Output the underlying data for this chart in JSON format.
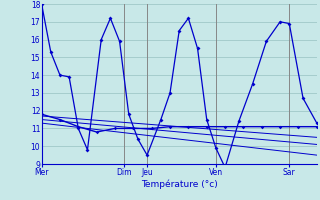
{
  "title": "Température (°c)",
  "background_color": "#c8e8e8",
  "plot_bg_color": "#c8e8e8",
  "grid_color": "#a0c8c8",
  "line_color": "#0000cc",
  "ylim": [
    9,
    18
  ],
  "yticks": [
    9,
    10,
    11,
    12,
    13,
    14,
    15,
    16,
    17,
    18
  ],
  "xlim": [
    0,
    60
  ],
  "x_day_labels": [
    "Mer",
    "Dim",
    "Jeu",
    "Ven",
    "Sar"
  ],
  "x_day_positions": [
    0,
    18,
    23,
    38,
    54
  ],
  "series_max": [
    [
      0,
      18.0
    ],
    [
      2,
      15.3
    ],
    [
      4,
      14.0
    ],
    [
      6,
      13.9
    ],
    [
      8,
      11.0
    ],
    [
      10,
      9.8
    ],
    [
      13,
      16.0
    ],
    [
      15,
      17.2
    ],
    [
      17,
      15.9
    ],
    [
      19,
      11.8
    ],
    [
      21,
      10.4
    ],
    [
      23,
      9.5
    ],
    [
      26,
      11.5
    ],
    [
      28,
      13.0
    ],
    [
      30,
      16.5
    ],
    [
      32,
      17.2
    ],
    [
      34,
      15.5
    ],
    [
      36,
      11.5
    ],
    [
      38,
      9.9
    ],
    [
      40,
      8.8
    ],
    [
      43,
      11.4
    ],
    [
      46,
      13.5
    ],
    [
      49,
      15.9
    ],
    [
      52,
      17.0
    ],
    [
      54,
      16.9
    ],
    [
      57,
      12.7
    ],
    [
      60,
      11.3
    ]
  ],
  "series_flat": [
    [
      0,
      11.8
    ],
    [
      4,
      11.5
    ],
    [
      8,
      11.1
    ],
    [
      12,
      10.8
    ],
    [
      16,
      11.0
    ],
    [
      20,
      11.0
    ],
    [
      24,
      11.0
    ],
    [
      28,
      11.1
    ],
    [
      32,
      11.1
    ],
    [
      36,
      11.1
    ],
    [
      40,
      11.1
    ],
    [
      44,
      11.1
    ],
    [
      48,
      11.1
    ],
    [
      52,
      11.1
    ],
    [
      56,
      11.1
    ],
    [
      60,
      11.1
    ]
  ],
  "series_trend1": [
    [
      0,
      11.7
    ],
    [
      60,
      10.5
    ]
  ],
  "series_trend2": [
    [
      0,
      11.5
    ],
    [
      60,
      10.1
    ]
  ],
  "series_trend3": [
    [
      0,
      11.3
    ],
    [
      60,
      9.5
    ]
  ]
}
